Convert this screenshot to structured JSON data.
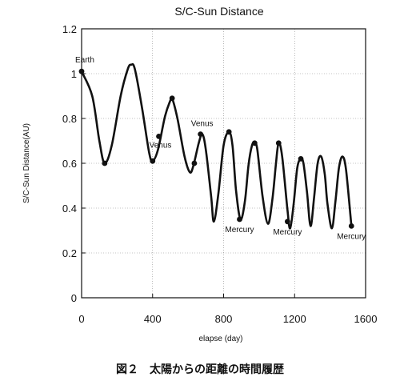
{
  "caption": "図２　太陽からの距離の時間履歴",
  "chart_data": {
    "type": "line",
    "title": "S/C-Sun Distance",
    "xlabel": "elapse (day)",
    "ylabel": "S/C-Sun Distance(AU)",
    "xlim": [
      0,
      1600
    ],
    "ylim": [
      0,
      1.2
    ],
    "xticks": [
      "0",
      "400",
      "800",
      "1200",
      "1600"
    ],
    "yticks": [
      "0",
      "0.2",
      "0.4",
      "0.6",
      "0.8",
      "1",
      "1.2"
    ],
    "grid": true,
    "series": [
      {
        "x": [
          0,
          60,
          100,
          130,
          170,
          220,
          260,
          280,
          300,
          340,
          380,
          400,
          430,
          470,
          500,
          510,
          540,
          580,
          610,
          630,
          660,
          680,
          700,
          730,
          745,
          770,
          800,
          830,
          850,
          870,
          895,
          920,
          940,
          960,
          975,
          990,
          1020,
          1050,
          1075,
          1095,
          1110,
          1130,
          1160,
          1175,
          1195,
          1215,
          1235,
          1250,
          1270,
          1290,
          1310,
          1330,
          1350,
          1370,
          1385,
          1410,
          1430,
          1450,
          1470,
          1490,
          1520
        ],
        "y": [
          1.01,
          0.9,
          0.7,
          0.6,
          0.68,
          0.9,
          1.02,
          1.04,
          1.02,
          0.85,
          0.65,
          0.61,
          0.66,
          0.81,
          0.88,
          0.89,
          0.8,
          0.63,
          0.56,
          0.59,
          0.69,
          0.73,
          0.66,
          0.45,
          0.34,
          0.46,
          0.68,
          0.74,
          0.68,
          0.48,
          0.35,
          0.43,
          0.59,
          0.68,
          0.69,
          0.66,
          0.45,
          0.33,
          0.44,
          0.6,
          0.69,
          0.63,
          0.39,
          0.31,
          0.42,
          0.58,
          0.62,
          0.6,
          0.47,
          0.32,
          0.45,
          0.6,
          0.63,
          0.55,
          0.42,
          0.31,
          0.43,
          0.58,
          0.63,
          0.57,
          0.32
        ]
      }
    ],
    "markers": [
      {
        "x": 0,
        "y": 1.01
      },
      {
        "x": 130,
        "y": 0.6
      },
      {
        "x": 400,
        "y": 0.61
      },
      {
        "x": 435,
        "y": 0.72
      },
      {
        "x": 510,
        "y": 0.89
      },
      {
        "x": 635,
        "y": 0.6
      },
      {
        "x": 670,
        "y": 0.73
      },
      {
        "x": 830,
        "y": 0.74
      },
      {
        "x": 890,
        "y": 0.35
      },
      {
        "x": 975,
        "y": 0.69
      },
      {
        "x": 1110,
        "y": 0.69
      },
      {
        "x": 1160,
        "y": 0.34
      },
      {
        "x": 1235,
        "y": 0.62
      },
      {
        "x": 1520,
        "y": 0.32
      }
    ],
    "annotations": [
      {
        "text": "Earth",
        "x": 0,
        "y": 1.01
      },
      {
        "text": "Venus",
        "x": 435,
        "y": 0.72
      },
      {
        "text": "Venus",
        "x": 670,
        "y": 0.73
      },
      {
        "text": "Mercury",
        "x": 890,
        "y": 0.35
      },
      {
        "text": "Mercury",
        "x": 1160,
        "y": 0.34
      },
      {
        "text": "Mercury",
        "x": 1520,
        "y": 0.32
      }
    ]
  }
}
